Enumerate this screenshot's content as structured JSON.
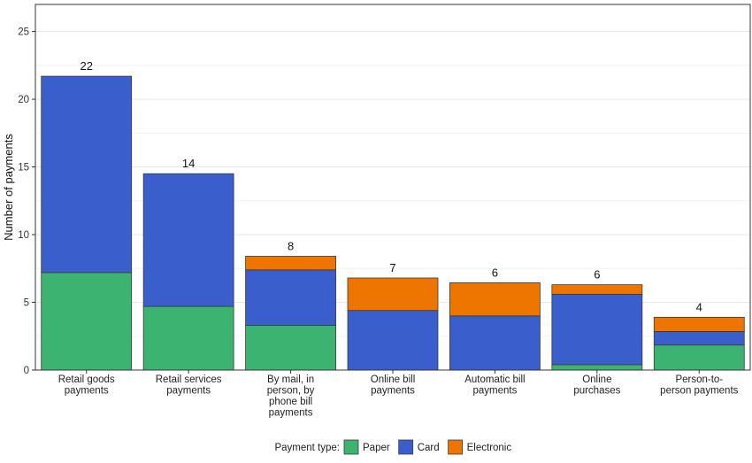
{
  "chart_data": {
    "type": "bar",
    "stacked": true,
    "ylabel": "Number of payments",
    "ylim": [
      0,
      27
    ],
    "yticks": [
      0,
      5,
      10,
      15,
      20,
      25
    ],
    "grid": true,
    "legend_position": "bottom",
    "legend_title": "Payment type:",
    "categories": [
      "Retail goods\npayments",
      "Retail services\npayments",
      "By mail, in\nperson, by\nphone bill\npayments",
      "Online bill\npayments",
      "Automatic bill\npayments",
      "Online\npurchases",
      "Person-to-\nperson payments"
    ],
    "series": [
      {
        "name": "Paper",
        "color": "#3cb371",
        "values": [
          7.2,
          4.7,
          3.3,
          0,
          0,
          0.4,
          1.85
        ]
      },
      {
        "name": "Card",
        "color": "#3a5fcd",
        "values": [
          14.5,
          9.8,
          4.1,
          4.4,
          4.0,
          5.2,
          1.0
        ]
      },
      {
        "name": "Electronic",
        "color": "#ee7600",
        "values": [
          0,
          0,
          1.0,
          2.4,
          2.45,
          0.7,
          1.05
        ]
      }
    ],
    "totals": [
      "22",
      "14",
      "8",
      "7",
      "6",
      "6",
      "4"
    ]
  }
}
